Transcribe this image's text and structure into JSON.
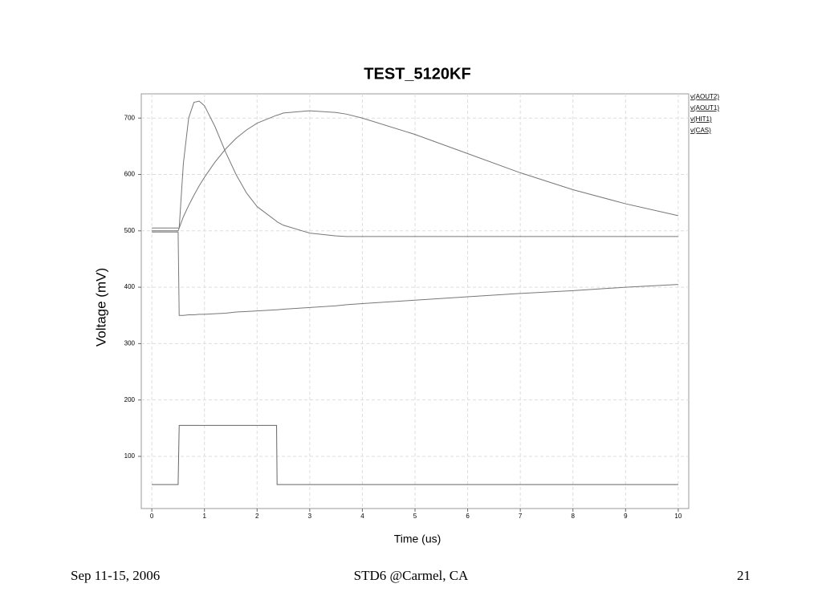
{
  "chart_data": {
    "type": "line",
    "title": "TEST_5120KF",
    "x_label": "Time (us)",
    "y_label": "Voltage (mV)",
    "x": [
      0,
      0.5,
      0.52,
      0.6,
      0.7,
      0.8,
      0.9,
      1.0,
      1.2,
      1.4,
      1.6,
      1.8,
      2.0,
      2.37,
      2.38,
      2.5,
      3.0,
      3.5,
      3.7,
      4,
      5,
      6,
      7,
      8,
      9,
      10
    ],
    "series": [
      {
        "name": "v(AOUT2)",
        "color": "#777777",
        "values": [
          500,
          500,
          505,
          620,
          700,
          728,
          730,
          722,
          685,
          640,
          600,
          567,
          543,
          517,
          516,
          510,
          496,
          491,
          490,
          490,
          490,
          490,
          490,
          490,
          490,
          490
        ]
      },
      {
        "name": "v(AOUT1)",
        "color": "#777777",
        "values": [
          505,
          505,
          505,
          525,
          545,
          563,
          580,
          595,
          622,
          645,
          664,
          679,
          691,
          705,
          705,
          709,
          713,
          710,
          707,
          700,
          671,
          637,
          603,
          573,
          548,
          527
        ]
      },
      {
        "name": "v(HIT1)",
        "color": "#666666",
        "values": [
          50,
          50,
          155,
          155,
          155,
          155,
          155,
          155,
          155,
          155,
          155,
          155,
          155,
          155,
          50,
          50,
          50,
          50,
          50,
          50,
          50,
          50,
          50,
          50,
          50,
          50
        ]
      },
      {
        "name": "v(CAS)",
        "color": "#777777",
        "values": [
          498,
          498,
          350,
          350,
          351,
          351,
          352,
          352,
          353,
          354,
          356,
          357,
          358,
          360,
          360,
          361,
          364,
          367,
          369,
          371,
          377,
          383,
          389,
          394,
          400,
          405
        ]
      }
    ],
    "xlim": [
      -0.2,
      10.2
    ],
    "xticks": [
      0,
      1,
      2,
      3,
      4,
      5,
      6,
      7,
      8,
      9,
      10
    ],
    "ylim": [
      7.5,
      743
    ],
    "yticks": [
      100,
      200,
      300,
      400,
      500,
      600,
      700
    ],
    "grid": true,
    "legend": "right"
  },
  "footer": {
    "left": "Sep 11-15, 2006",
    "center": "STD6 @Carmel, CA",
    "right": "21"
  }
}
